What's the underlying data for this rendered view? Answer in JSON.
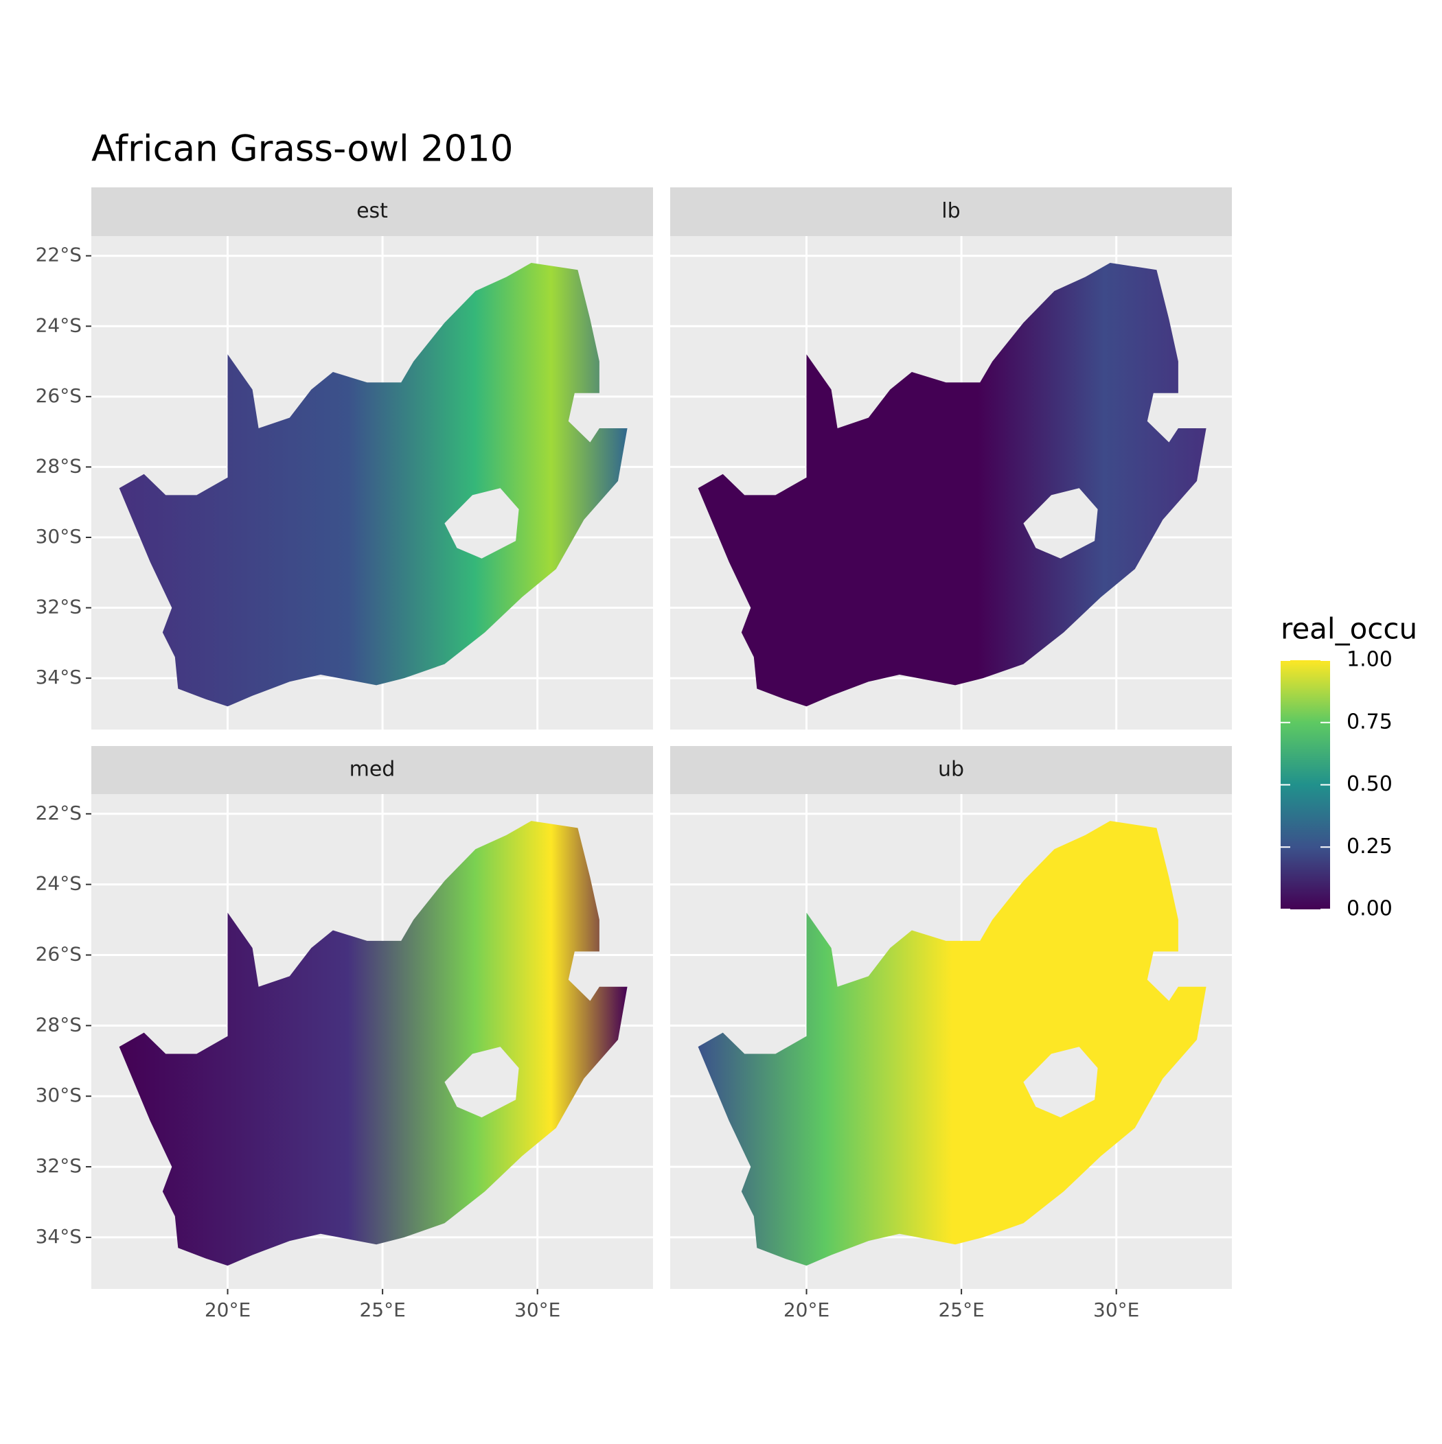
{
  "chart_data": {
    "type": "raster-map",
    "title": "African Grass-owl 2010",
    "panels": [
      "est",
      "lb",
      "med",
      "ub"
    ],
    "xlim": [
      15.6,
      33.73
    ],
    "ylim": [
      -35.46,
      -21.44
    ],
    "xticks": [
      {
        "value": 20,
        "label": "20°E"
      },
      {
        "value": 25,
        "label": "25°E"
      },
      {
        "value": 30,
        "label": "30°E"
      }
    ],
    "yticks": [
      {
        "value": -22,
        "label": "22°S"
      },
      {
        "value": -24,
        "label": "24°S"
      },
      {
        "value": -26,
        "label": "26°S"
      },
      {
        "value": -28,
        "label": "28°S"
      },
      {
        "value": -30,
        "label": "30°S"
      },
      {
        "value": -32,
        "label": "32°S"
      },
      {
        "value": -34,
        "label": "34°S"
      }
    ],
    "grid": true,
    "legend": {
      "title": "real_occu",
      "lim": [
        0,
        1
      ],
      "ticks": [
        {
          "value": 0,
          "label": "0.00"
        },
        {
          "value": 0.25,
          "label": "0.25"
        },
        {
          "value": 0.5,
          "label": "0.50"
        },
        {
          "value": 0.75,
          "label": "0.75"
        },
        {
          "value": 1,
          "label": "1.00"
        }
      ],
      "colors": [
        "#440154",
        "#3b528b",
        "#21918c",
        "#5ec962",
        "#fde725"
      ]
    }
  }
}
